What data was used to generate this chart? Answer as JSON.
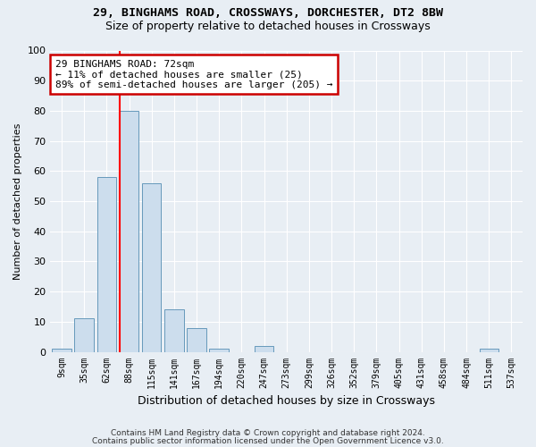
{
  "title": "29, BINGHAMS ROAD, CROSSWAYS, DORCHESTER, DT2 8BW",
  "subtitle": "Size of property relative to detached houses in Crossways",
  "xlabel": "Distribution of detached houses by size in Crossways",
  "ylabel": "Number of detached properties",
  "bar_color": "#ccdded",
  "bar_edge_color": "#6699bb",
  "categories": [
    "9sqm",
    "35sqm",
    "62sqm",
    "88sqm",
    "115sqm",
    "141sqm",
    "167sqm",
    "194sqm",
    "220sqm",
    "247sqm",
    "273sqm",
    "299sqm",
    "326sqm",
    "352sqm",
    "379sqm",
    "405sqm",
    "431sqm",
    "458sqm",
    "484sqm",
    "511sqm",
    "537sqm"
  ],
  "values": [
    1,
    11,
    58,
    80,
    56,
    14,
    8,
    1,
    0,
    2,
    0,
    0,
    0,
    0,
    0,
    0,
    0,
    0,
    0,
    1,
    0
  ],
  "ylim": [
    0,
    100
  ],
  "yticks": [
    0,
    10,
    20,
    30,
    40,
    50,
    60,
    70,
    80,
    90,
    100
  ],
  "red_line_x": 3.0,
  "annotation_text": "29 BINGHAMS ROAD: 72sqm\n← 11% of detached houses are smaller (25)\n89% of semi-detached houses are larger (205) →",
  "annotation_box_color": "#ffffff",
  "annotation_box_edge": "#cc0000",
  "footer_line1": "Contains HM Land Registry data © Crown copyright and database right 2024.",
  "footer_line2": "Contains public sector information licensed under the Open Government Licence v3.0.",
  "background_color": "#e8eef4",
  "grid_color": "#ffffff",
  "title_fontsize": 9.5,
  "subtitle_fontsize": 9
}
